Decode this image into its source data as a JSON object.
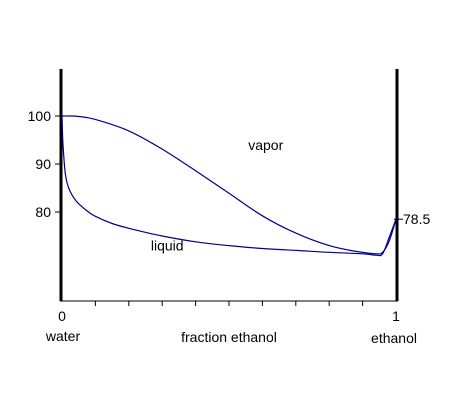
{
  "chart_data": {
    "type": "line",
    "title": "",
    "xlabel": "fraction ethanol",
    "ylabel": "",
    "xlim": [
      0,
      1
    ],
    "ylim": [
      68,
      110
    ],
    "grid": false,
    "x_tick_labels": [
      {
        "x": 0,
        "label": "0"
      },
      {
        "x": 1,
        "label": "1"
      }
    ],
    "x_minor_ticks": [
      0.1,
      0.2,
      0.3,
      0.4,
      0.5,
      0.6,
      0.7,
      0.8,
      0.9
    ],
    "y_ticks": [
      80,
      90,
      100
    ],
    "end_labels": {
      "left": "water",
      "right": "ethanol"
    },
    "region_labels": [
      {
        "text": "vapor",
        "x": 0.61,
        "y": 94
      },
      {
        "text": "liquid",
        "x": 0.315,
        "y": 73
      }
    ],
    "right_axis_annotation": {
      "text": "78.5",
      "y": 78.5
    },
    "series": [
      {
        "color": "#00008b",
        "points": [
          [
            0,
            100
          ],
          [
            0.02,
            100
          ],
          [
            0.05,
            99.9
          ],
          [
            0.1,
            99.3
          ],
          [
            0.2,
            96.9
          ],
          [
            0.3,
            93.1
          ],
          [
            0.4,
            88.6
          ],
          [
            0.5,
            83.9
          ],
          [
            0.6,
            79.2
          ],
          [
            0.7,
            75.6
          ],
          [
            0.8,
            73
          ],
          [
            0.88,
            71.8
          ],
          [
            0.94,
            71.3
          ],
          [
            0.96,
            71.6
          ],
          [
            0.98,
            74
          ],
          [
            1.0,
            78.5
          ]
        ]
      },
      {
        "color": "#00008b",
        "points": [
          [
            0,
            100
          ],
          [
            0.003,
            94
          ],
          [
            0.01,
            88
          ],
          [
            0.02,
            85
          ],
          [
            0.04,
            82.5
          ],
          [
            0.07,
            80.5
          ],
          [
            0.1,
            79.1
          ],
          [
            0.15,
            77.6
          ],
          [
            0.2,
            76.6
          ],
          [
            0.3,
            75
          ],
          [
            0.4,
            73.8
          ],
          [
            0.5,
            73
          ],
          [
            0.6,
            72.4
          ],
          [
            0.7,
            72
          ],
          [
            0.8,
            71.6
          ],
          [
            0.9,
            71.3
          ],
          [
            0.94,
            71
          ],
          [
            0.96,
            71.3
          ],
          [
            0.98,
            74.8
          ],
          [
            1.0,
            78.5
          ]
        ]
      }
    ]
  }
}
